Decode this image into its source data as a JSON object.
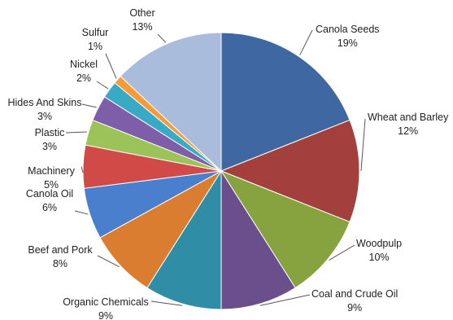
{
  "chart_data": {
    "type": "pie",
    "title": "",
    "slices": [
      {
        "name": "Canola Seeds",
        "value": 19,
        "label": "19%",
        "color": "#3f67a2"
      },
      {
        "name": "Wheat and Barley",
        "value": 12,
        "label": "12%",
        "color": "#a33f3d"
      },
      {
        "name": "Woodpulp",
        "value": 10,
        "label": "10%",
        "color": "#86a33f"
      },
      {
        "name": "Coal and Crude Oil",
        "value": 9,
        "label": "9%",
        "color": "#6a4f8c"
      },
      {
        "name": "Organic Chemicals",
        "value": 9,
        "label": "9%",
        "color": "#2f8da6"
      },
      {
        "name": "Beef and Pork",
        "value": 8,
        "label": "8%",
        "color": "#db7d30"
      },
      {
        "name": "Canola Oil",
        "value": 6,
        "label": "6%",
        "color": "#4a7fce"
      },
      {
        "name": "Machinery",
        "value": 5,
        "label": "5%",
        "color": "#d04a47"
      },
      {
        "name": "Plastic",
        "value": 3,
        "label": "3%",
        "color": "#9bc35a"
      },
      {
        "name": "Hides And Skins",
        "value": 3,
        "label": "3%",
        "color": "#7e5ea8"
      },
      {
        "name": "Nickel",
        "value": 2,
        "label": "2%",
        "color": "#38aac6"
      },
      {
        "name": "Sulfur",
        "value": 1,
        "label": "1%",
        "color": "#f79a3a"
      },
      {
        "name": "Other",
        "value": 13,
        "label": "13%",
        "color": "#a9bcdc"
      }
    ]
  }
}
